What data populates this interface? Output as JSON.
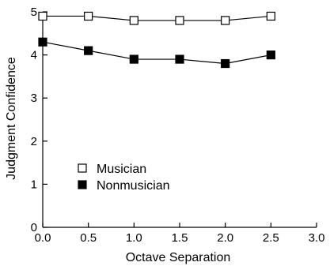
{
  "chart_data": {
    "type": "line",
    "title": "",
    "xlabel": "Octave Separation",
    "ylabel": "Judgment Confidence",
    "xlim": [
      0,
      3
    ],
    "ylim": [
      0,
      5
    ],
    "xticks": [
      "0.0",
      "0.5",
      "1.0",
      "1.5",
      "2.0",
      "2.5",
      "3.0"
    ],
    "yticks": [
      "0",
      "1",
      "2",
      "3",
      "4",
      "5"
    ],
    "grid": false,
    "legend_position": "lower-left",
    "series": [
      {
        "name": "Musician",
        "marker": "open-square",
        "x": [
          0.0,
          0.5,
          1.0,
          1.5,
          2.0,
          2.5
        ],
        "y": [
          4.9,
          4.9,
          4.8,
          4.8,
          4.8,
          4.9
        ]
      },
      {
        "name": "Nonmusician",
        "marker": "filled-square",
        "x": [
          0.0,
          0.5,
          1.0,
          1.5,
          2.0,
          2.5
        ],
        "y": [
          4.3,
          4.1,
          3.9,
          3.9,
          3.8,
          4.0
        ]
      }
    ]
  }
}
